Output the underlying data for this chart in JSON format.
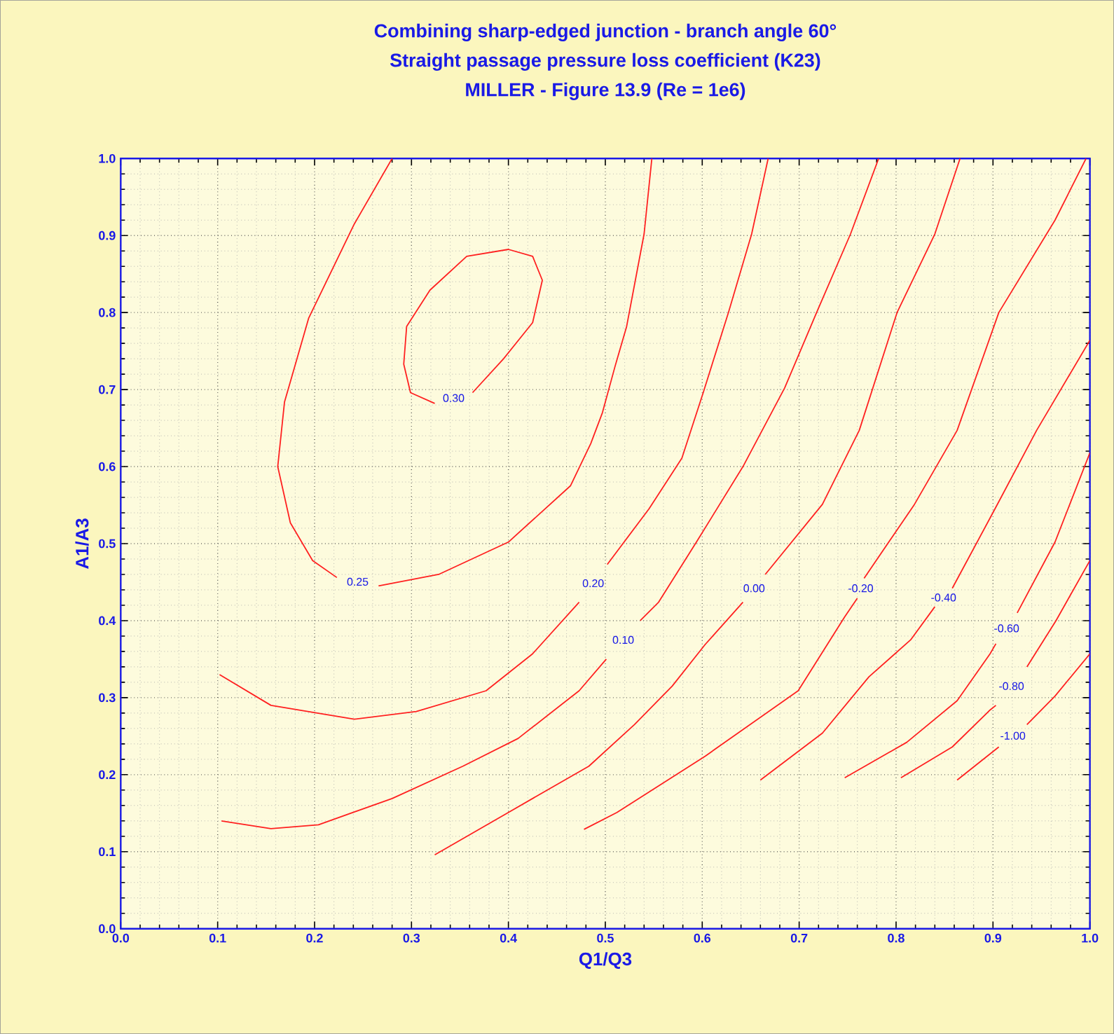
{
  "chart_data": {
    "type": "line",
    "title": "Combining sharp-edged junction - branch angle 60°",
    "subtitle": "Straight passage pressure loss coefficient (K23)",
    "annotations": [
      "MILLER - Figure 13.9 (Re = 1e6)"
    ],
    "xlabel": "Q1/Q3",
    "ylabel": "A1/A3",
    "xlim": [
      0,
      1
    ],
    "ylim": [
      0,
      1
    ],
    "xticks": [
      {
        "value": 0,
        "label": "0.0"
      },
      {
        "value": 0.1,
        "label": "0.1"
      },
      {
        "value": 0.2,
        "label": "0.2"
      },
      {
        "value": 0.3,
        "label": "0.3"
      },
      {
        "value": 0.4,
        "label": "0.4"
      },
      {
        "value": 0.5,
        "label": "0.5"
      },
      {
        "value": 0.6,
        "label": "0.6"
      },
      {
        "value": 0.7,
        "label": "0.7"
      },
      {
        "value": 0.8,
        "label": "0.8"
      },
      {
        "value": 0.9,
        "label": "0.9"
      },
      {
        "value": 1,
        "label": "1.0"
      }
    ],
    "yticks": [
      {
        "value": 0,
        "label": "0.0"
      },
      {
        "value": 0.1,
        "label": "0.1"
      },
      {
        "value": 0.2,
        "label": "0.2"
      },
      {
        "value": 0.3,
        "label": "0.3"
      },
      {
        "value": 0.4,
        "label": "0.4"
      },
      {
        "value": 0.5,
        "label": "0.5"
      },
      {
        "value": 0.6,
        "label": "0.6"
      },
      {
        "value": 0.7,
        "label": "0.7"
      },
      {
        "value": 0.8,
        "label": "0.8"
      },
      {
        "value": 0.9,
        "label": "0.9"
      },
      {
        "value": 1,
        "label": "1.0"
      }
    ],
    "grid": true,
    "marker": "none",
    "line_style": "solid",
    "series": [
      {
        "name": "0.30",
        "color": "#ff2020",
        "x": [
          0.363,
          0.395,
          0.425,
          0.435,
          0.425,
          0.4,
          0.357,
          0.319,
          0.295,
          0.292,
          0.299,
          0.324
        ],
        "values": [
          0.696,
          0.74,
          0.787,
          0.842,
          0.873,
          0.882,
          0.873,
          0.829,
          0.782,
          0.733,
          0.696,
          0.682
        ]
      },
      {
        "name": "0.25",
        "color": "#ff2020",
        "x": [
          0.28,
          0.241,
          0.194,
          0.169,
          0.162,
          0.175,
          0.198,
          0.223,
          0.245,
          0.266,
          0.328,
          0.4,
          0.464,
          0.485,
          0.497,
          0.51,
          0.522,
          0.54,
          0.548
        ],
        "values": [
          1.0,
          0.915,
          0.793,
          0.684,
          0.6,
          0.527,
          0.478,
          0.456,
          null,
          0.445,
          0.46,
          0.502,
          0.575,
          0.63,
          0.67,
          0.73,
          0.782,
          0.902,
          1.0
        ]
      },
      {
        "name": "0.20",
        "color": "#ff2020",
        "x": [
          0.102,
          0.155,
          0.241,
          0.305,
          0.377,
          0.425,
          0.473,
          0.487,
          0.502,
          0.545,
          0.579,
          0.601,
          0.627,
          0.651,
          0.668
        ],
        "values": [
          0.33,
          0.29,
          0.272,
          0.282,
          0.309,
          0.357,
          0.424,
          null,
          0.473,
          0.545,
          0.611,
          0.696,
          0.8,
          0.902,
          1.0
        ]
      },
      {
        "name": "0.10",
        "color": "#ff2020",
        "x": [
          0.104,
          0.155,
          0.204,
          0.28,
          0.353,
          0.41,
          0.473,
          0.501,
          0.518,
          0.536,
          0.555,
          0.594,
          0.642,
          0.685,
          0.718,
          0.753,
          0.782
        ],
        "values": [
          0.14,
          0.13,
          0.135,
          0.169,
          0.211,
          0.247,
          0.309,
          0.35,
          null,
          0.4,
          0.424,
          0.502,
          0.6,
          0.702,
          0.8,
          0.902,
          1.0
        ]
      },
      {
        "name": "0.00",
        "color": "#ff2020",
        "x": [
          0.324,
          0.4,
          0.483,
          0.53,
          0.569,
          0.603,
          0.642,
          0.653,
          0.665,
          0.724,
          0.762,
          0.801,
          0.84,
          0.866
        ],
        "values": [
          0.096,
          0.151,
          0.211,
          0.265,
          0.315,
          0.369,
          0.424,
          null,
          0.46,
          0.551,
          0.647,
          0.8,
          0.902,
          1.0
        ]
      },
      {
        "name": "-0.20",
        "color": "#ff2020",
        "x": [
          0.478,
          0.512,
          0.603,
          0.699,
          0.747,
          0.76,
          0.763,
          0.767,
          0.819,
          0.863,
          0.906,
          0.964,
          0.996
        ],
        "values": [
          0.129,
          0.151,
          0.224,
          0.309,
          0.405,
          0.429,
          null,
          0.455,
          0.551,
          0.647,
          0.8,
          0.92,
          1.0
        ]
      },
      {
        "name": "-0.40",
        "color": "#ff2020",
        "x": [
          0.66,
          0.724,
          0.772,
          0.815,
          0.84,
          0.849,
          0.858,
          0.902,
          0.945,
          1.0
        ],
        "values": [
          0.193,
          0.254,
          0.327,
          0.375,
          0.418,
          null,
          0.442,
          0.545,
          0.647,
          0.764
        ]
      },
      {
        "name": "-0.60",
        "color": "#ff2020",
        "x": [
          0.747,
          0.811,
          0.863,
          0.897,
          0.903,
          0.914,
          0.925,
          0.964,
          1.0
        ],
        "values": [
          0.196,
          0.242,
          0.296,
          0.357,
          0.37,
          null,
          0.41,
          0.502,
          0.618
        ]
      },
      {
        "name": "-0.80",
        "color": "#ff2020",
        "x": [
          0.805,
          0.858,
          0.897,
          0.903,
          0.919,
          0.935,
          0.965,
          1.0
        ],
        "values": [
          0.196,
          0.236,
          0.284,
          0.29,
          null,
          0.34,
          0.4,
          0.478
        ]
      },
      {
        "name": "-1.00",
        "color": "#ff2020",
        "x": [
          0.863,
          0.906,
          0.92,
          0.935,
          0.964,
          1.0
        ],
        "values": [
          0.193,
          0.236,
          null,
          0.265,
          0.302,
          0.357
        ]
      }
    ]
  }
}
